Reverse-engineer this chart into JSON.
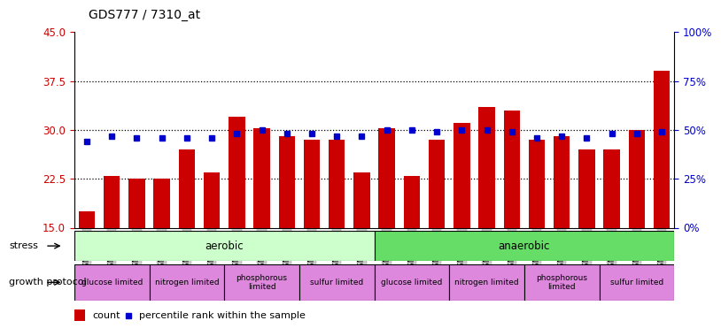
{
  "title": "GDS777 / 7310_at",
  "samples": [
    "GSM29912",
    "GSM29914",
    "GSM29917",
    "GSM29920",
    "GSM29921",
    "GSM29922",
    "GSM29924",
    "GSM29926",
    "GSM29927",
    "GSM29929",
    "GSM29930",
    "GSM29932",
    "GSM29934",
    "GSM29936",
    "GSM29937",
    "GSM29939",
    "GSM29940",
    "GSM29942",
    "GSM29943",
    "GSM29945",
    "GSM29946",
    "GSM29948",
    "GSM29949",
    "GSM29951"
  ],
  "count_values": [
    17.5,
    23.0,
    22.5,
    22.5,
    27.0,
    23.5,
    32.0,
    30.2,
    29.0,
    28.5,
    28.5,
    23.5,
    30.2,
    23.0,
    28.5,
    31.0,
    33.5,
    33.0,
    28.5,
    29.0,
    27.0,
    27.0,
    30.0,
    39.0
  ],
  "percentile_pct": [
    44,
    47,
    46,
    46,
    46,
    46,
    48,
    50,
    48,
    48,
    47,
    47,
    50,
    50,
    49,
    50,
    50,
    49,
    46,
    47,
    46,
    48,
    48,
    49
  ],
  "ylim_left": [
    15,
    45
  ],
  "yticks_left": [
    15,
    22.5,
    30,
    37.5,
    45
  ],
  "ylim_right": [
    0,
    100
  ],
  "yticks_right": [
    0,
    25,
    50,
    75,
    100
  ],
  "bar_color": "#cc0000",
  "percentile_color": "#0000cc",
  "stress_aerobic": {
    "label": "aerobic",
    "start": 0,
    "end": 12,
    "color": "#ccffcc"
  },
  "stress_anaerobic": {
    "label": "anaerobic",
    "start": 12,
    "end": 24,
    "color": "#66dd66"
  },
  "growth_protocols": [
    {
      "label": "glucose limited",
      "start": 0,
      "end": 3
    },
    {
      "label": "nitrogen limited",
      "start": 3,
      "end": 6
    },
    {
      "label": "phosphorous\nlimited",
      "start": 6,
      "end": 9
    },
    {
      "label": "sulfur limited",
      "start": 9,
      "end": 12
    },
    {
      "label": "glucose limited",
      "start": 12,
      "end": 15
    },
    {
      "label": "nitrogen limited",
      "start": 15,
      "end": 18
    },
    {
      "label": "phosphorous\nlimited",
      "start": 18,
      "end": 21
    },
    {
      "label": "sulfur limited",
      "start": 21,
      "end": 24
    }
  ],
  "growth_protocol_color": "#dd88dd",
  "legend_count_label": "count",
  "legend_percentile_label": "percentile rank within the sample",
  "stress_label": "stress",
  "growth_protocol_label": "growth protocol",
  "title_fontsize": 10,
  "axis_label_color_left": "#cc0000",
  "axis_label_color_right": "#0000cc",
  "tick_bg_color": "#cccccc"
}
